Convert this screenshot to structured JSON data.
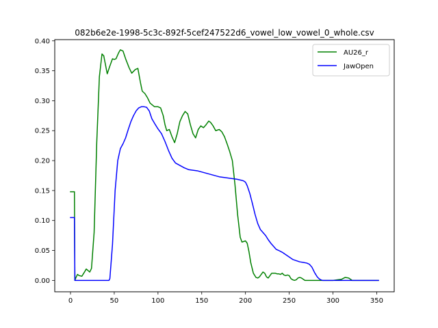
{
  "chart_data": {
    "type": "line",
    "title": "082b6e2e-1998-5c3c-892f-5cef247522d6_vowel_low_vowel_0_whole.csv",
    "xlabel": "",
    "ylabel": "",
    "xlim": [
      -18,
      370
    ],
    "ylim": [
      -0.019,
      0.402
    ],
    "xticks": [
      0,
      50,
      100,
      150,
      200,
      250,
      300,
      350
    ],
    "yticks": [
      0.0,
      0.05,
      0.1,
      0.15,
      0.2,
      0.25,
      0.3,
      0.35,
      0.4
    ],
    "ytick_labels": [
      "0.00",
      "0.05",
      "0.10",
      "0.15",
      "0.20",
      "0.25",
      "0.30",
      "0.35",
      "0.40"
    ],
    "grid": false,
    "legend_position": "top-right",
    "series": [
      {
        "name": "AU26_r",
        "color": "#008000",
        "x": [
          0,
          4,
          4.5,
          5,
          6,
          8,
          10,
          13,
          16,
          18,
          22,
          24,
          27,
          30,
          33,
          36,
          38,
          40,
          42,
          45,
          48,
          50,
          52,
          55,
          57,
          60,
          63,
          67,
          70,
          74,
          77,
          80,
          82,
          85,
          88,
          91,
          96,
          100,
          103,
          106,
          108,
          110,
          113,
          116,
          119,
          122,
          125,
          128,
          131,
          134,
          137,
          140,
          143,
          146,
          149,
          152,
          155,
          158,
          160,
          163,
          166,
          170,
          173,
          176,
          179,
          182,
          185,
          188,
          191,
          194,
          196,
          198,
          200,
          202,
          204,
          206,
          209,
          212,
          214,
          216,
          218,
          220,
          222,
          224,
          226,
          230,
          234,
          236,
          238,
          240,
          242,
          244,
          246,
          248,
          250,
          252,
          254,
          256,
          258,
          260,
          262,
          264,
          266,
          268,
          270,
          280,
          290,
          300,
          305,
          310,
          314,
          318,
          322,
          330,
          340,
          352
        ],
        "y": [
          0.148,
          0.148,
          0.148,
          0.0,
          0.004,
          0.01,
          0.008,
          0.007,
          0.014,
          0.019,
          0.014,
          0.02,
          0.08,
          0.23,
          0.34,
          0.378,
          0.375,
          0.36,
          0.345,
          0.358,
          0.37,
          0.369,
          0.37,
          0.38,
          0.385,
          0.383,
          0.37,
          0.355,
          0.346,
          0.352,
          0.354,
          0.33,
          0.316,
          0.312,
          0.305,
          0.296,
          0.29,
          0.29,
          0.288,
          0.275,
          0.26,
          0.25,
          0.252,
          0.24,
          0.23,
          0.245,
          0.265,
          0.275,
          0.282,
          0.278,
          0.26,
          0.245,
          0.238,
          0.252,
          0.258,
          0.255,
          0.26,
          0.266,
          0.264,
          0.258,
          0.25,
          0.252,
          0.248,
          0.24,
          0.228,
          0.215,
          0.2,
          0.16,
          0.11,
          0.072,
          0.064,
          0.065,
          0.066,
          0.062,
          0.048,
          0.03,
          0.012,
          0.005,
          0.004,
          0.006,
          0.01,
          0.014,
          0.012,
          0.006,
          0.004,
          0.012,
          0.012,
          0.011,
          0.011,
          0.01,
          0.012,
          0.009,
          0.008,
          0.009,
          0.008,
          0.003,
          0.001,
          0.0,
          0.001,
          0.004,
          0.005,
          0.004,
          0.002,
          0.0,
          0.0,
          0.0,
          0.0,
          0.0,
          0.001,
          0.002,
          0.005,
          0.004,
          0.0,
          0.0,
          0.0,
          0.0
        ]
      },
      {
        "name": "JawOpen",
        "color": "#0000ff",
        "x": [
          0,
          4,
          4.5,
          5,
          10,
          20,
          30,
          40,
          43,
          44,
          45,
          48,
          51,
          54,
          57,
          60,
          63,
          66,
          69,
          72,
          75,
          78,
          81,
          84,
          87,
          90,
          93,
          97,
          100,
          104,
          108,
          112,
          116,
          120,
          125,
          130,
          135,
          140,
          145,
          150,
          155,
          160,
          165,
          170,
          175,
          180,
          185,
          190,
          193,
          196,
          198,
          200,
          202,
          205,
          208,
          211,
          214,
          217,
          220,
          223,
          226,
          229,
          232,
          235,
          238,
          242,
          246,
          250,
          254,
          258,
          262,
          266,
          270,
          273,
          276,
          279,
          282,
          284,
          286,
          288,
          290,
          300,
          320,
          352
        ],
        "y": [
          0.105,
          0.105,
          0.105,
          0.0,
          0.0,
          0.0,
          0.0,
          0.0,
          0.0,
          0.0,
          0.003,
          0.06,
          0.15,
          0.2,
          0.22,
          0.228,
          0.238,
          0.252,
          0.265,
          0.275,
          0.283,
          0.288,
          0.29,
          0.29,
          0.289,
          0.283,
          0.27,
          0.26,
          0.253,
          0.245,
          0.232,
          0.217,
          0.204,
          0.196,
          0.192,
          0.188,
          0.185,
          0.184,
          0.183,
          0.181,
          0.179,
          0.177,
          0.175,
          0.173,
          0.172,
          0.171,
          0.17,
          0.169,
          0.168,
          0.167,
          0.166,
          0.164,
          0.158,
          0.145,
          0.128,
          0.11,
          0.095,
          0.085,
          0.08,
          0.075,
          0.068,
          0.062,
          0.057,
          0.052,
          0.05,
          0.047,
          0.043,
          0.039,
          0.035,
          0.033,
          0.031,
          0.03,
          0.029,
          0.027,
          0.022,
          0.013,
          0.006,
          0.003,
          0.001,
          0.0,
          0.0,
          0.0,
          0.0,
          0.0
        ]
      }
    ]
  }
}
